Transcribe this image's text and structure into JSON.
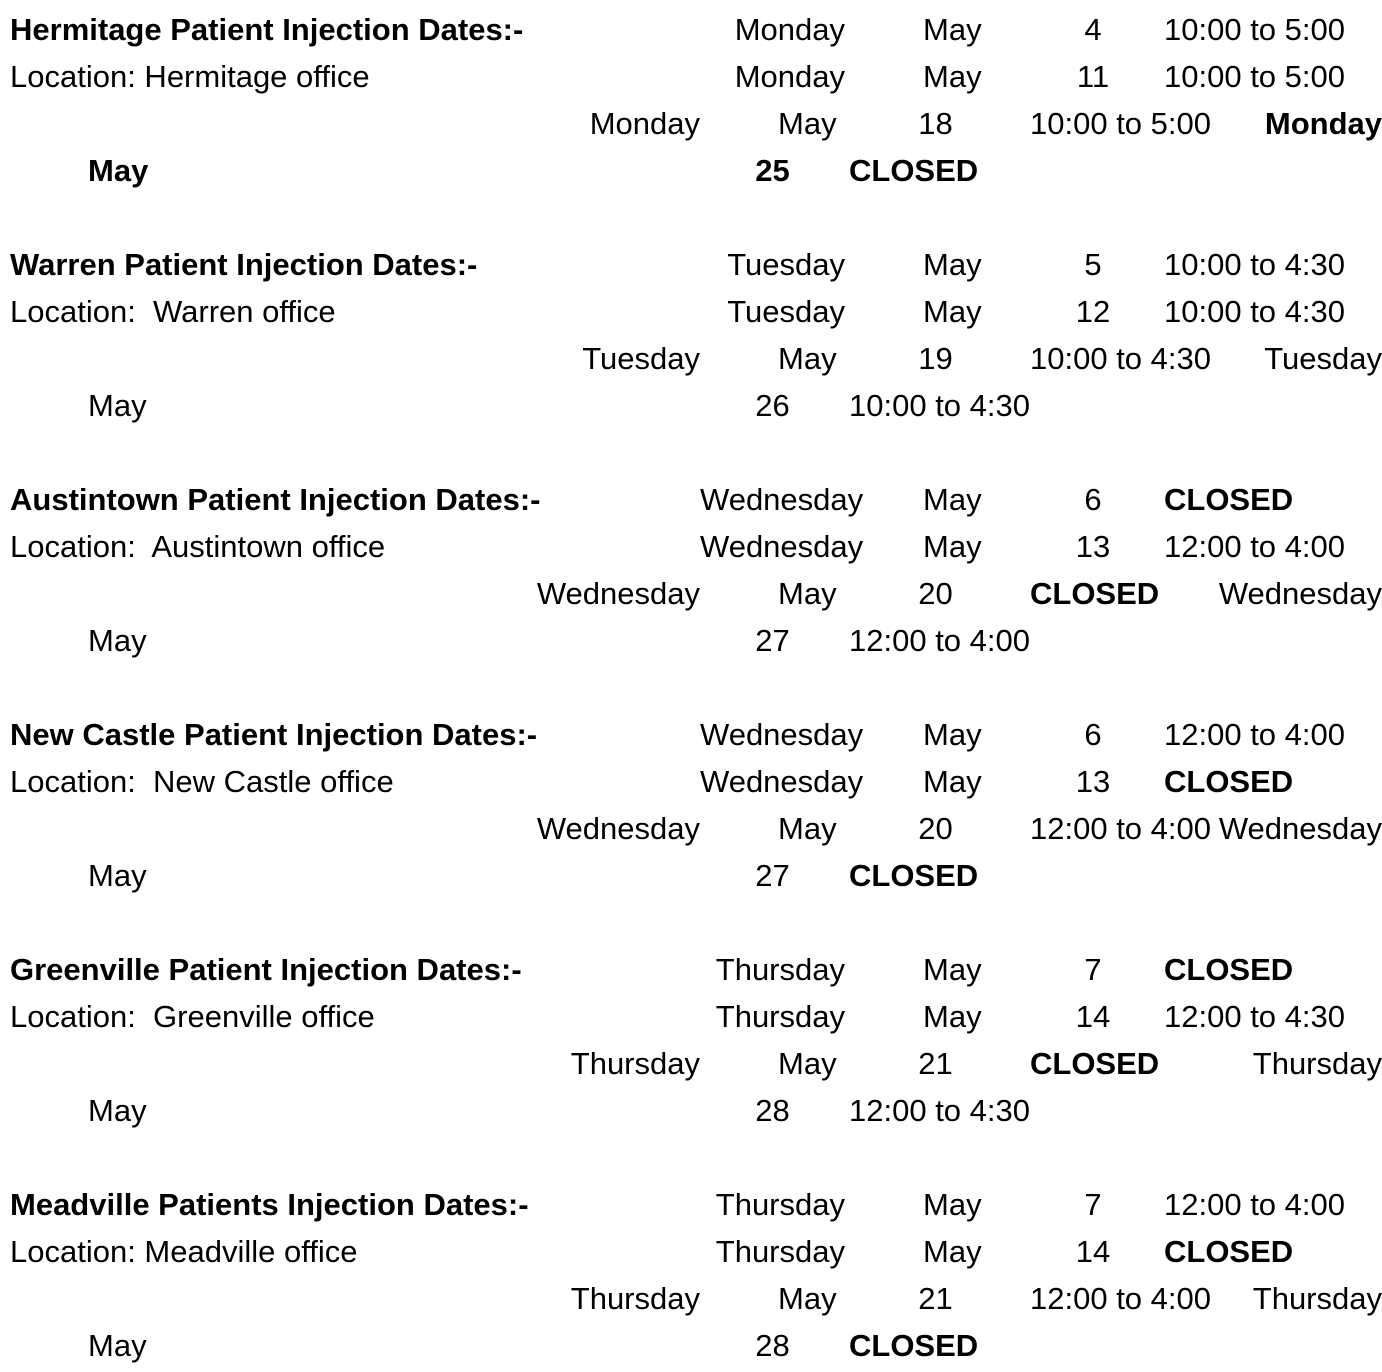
{
  "document": {
    "sections": [
      {
        "title": "Hermitage Patient Injection Dates:-",
        "location": "Location: Hermitage office",
        "rows": [
          {
            "day": "Monday",
            "month": "May",
            "date": "4",
            "time": "10:00 to 5:00"
          },
          {
            "day": "Monday",
            "month": "May",
            "date": "11",
            "time": "10:00 to 5:00"
          },
          {
            "day": "Monday",
            "month": "May",
            "date": "18",
            "time": "10:00 to 5:00"
          },
          {
            "day": "Monday",
            "month": "May",
            "date": "25",
            "time": "CLOSED"
          }
        ]
      },
      {
        "title": "Warren Patient Injection Dates:-",
        "location": "Location:  Warren office",
        "rows": [
          {
            "day": "Tuesday",
            "month": "May",
            "date": "5",
            "time": "10:00 to 4:30"
          },
          {
            "day": "Tuesday",
            "month": "May",
            "date": "12",
            "time": "10:00 to 4:30"
          },
          {
            "day": "Tuesday",
            "month": "May",
            "date": "19",
            "time": "10:00 to 4:30"
          },
          {
            "day": "Tuesday",
            "month": "May",
            "date": "26",
            "time": "10:00 to 4:30"
          }
        ]
      },
      {
        "title": "Austintown Patient Injection Dates:-",
        "location": "Location:  Austintown office",
        "rows": [
          {
            "day": "Wednesday",
            "month": "May",
            "date": "6",
            "time": "CLOSED"
          },
          {
            "day": "Wednesday",
            "month": "May",
            "date": "13",
            "time": "12:00 to 4:00"
          },
          {
            "day": "Wednesday",
            "month": "May",
            "date": "20",
            "time": "CLOSED"
          },
          {
            "day": "Wednesday",
            "month": "May",
            "date": "27",
            "time": "12:00 to 4:00"
          }
        ]
      },
      {
        "title": "New Castle Patient Injection Dates:-",
        "location": "Location:  New Castle office",
        "rows": [
          {
            "day": "Wednesday",
            "month": "May",
            "date": "6",
            "time": "12:00 to 4:00"
          },
          {
            "day": "Wednesday",
            "month": "May",
            "date": "13",
            "time": "CLOSED"
          },
          {
            "day": "Wednesday",
            "month": "May",
            "date": "20",
            "time": "12:00 to 4:00"
          },
          {
            "day": "Wednesday",
            "month": "May",
            "date": "27",
            "time": "CLOSED"
          }
        ]
      },
      {
        "title": "Greenville Patient Injection Dates:-",
        "location": "Location:  Greenville office",
        "rows": [
          {
            "day": "Thursday",
            "month": "May",
            "date": "7",
            "time": "CLOSED"
          },
          {
            "day": "Thursday",
            "month": "May",
            "date": "14",
            "time": "12:00 to 4:30"
          },
          {
            "day": "Thursday",
            "month": "May",
            "date": "21",
            "time": "CLOSED"
          },
          {
            "day": "Thursday",
            "month": "May",
            "date": "28",
            "time": "12:00 to 4:30"
          }
        ]
      },
      {
        "title": "Meadville Patients Injection Dates:-",
        "location": "Location: Meadville office",
        "rows": [
          {
            "day": "Thursday",
            "month": "May",
            "date": "7",
            "time": "12:00 to 4:00"
          },
          {
            "day": "Thursday",
            "month": "May",
            "date": "14",
            "time": "CLOSED"
          },
          {
            "day": "Thursday",
            "month": "May",
            "date": "21",
            "time": "12:00 to 4:00"
          },
          {
            "day": "Thursday",
            "month": "May",
            "date": "28",
            "time": "CLOSED"
          }
        ]
      }
    ]
  }
}
